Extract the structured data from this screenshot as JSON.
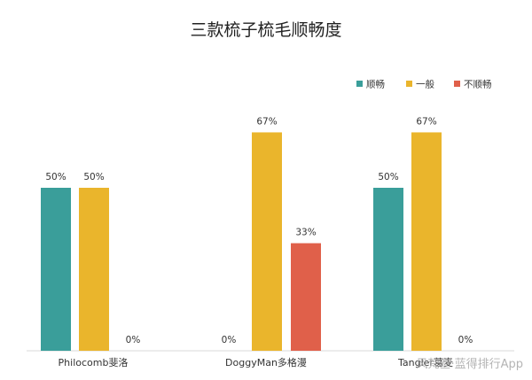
{
  "chart_data": {
    "type": "bar",
    "title": "三款梳子梳毛顺畅度",
    "categories": [
      "Philocomb斐洛",
      "DoggyMan多格漫",
      "Tangler葛麦"
    ],
    "series": [
      {
        "name": "顺畅",
        "color": "#3a9e9a",
        "values": [
          50,
          0,
          50
        ]
      },
      {
        "name": "一般",
        "color": "#eab52c",
        "values": [
          50,
          67,
          67
        ]
      },
      {
        "name": "不顺畅",
        "color": "#e0604a",
        "values": [
          0,
          33,
          0
        ]
      }
    ],
    "value_suffix": "%",
    "ylim": [
      0,
      100
    ],
    "grid": false,
    "legend_position": "top-right"
  },
  "watermark": "风梵叁·蓝得排行App"
}
